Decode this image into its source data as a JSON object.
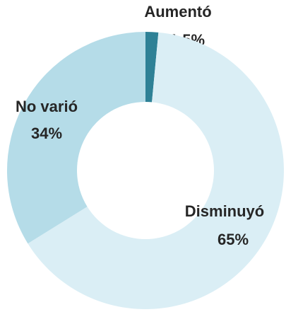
{
  "chart_data": {
    "type": "donut",
    "categories": [
      "Aumentó",
      "Disminuyó",
      "No varió"
    ],
    "values": [
      1.5,
      65,
      34
    ],
    "value_labels": [
      "1.5%",
      "65%",
      "34%"
    ],
    "colors": [
      "#2e8196",
      "#daeef5",
      "#b5dce8"
    ]
  }
}
